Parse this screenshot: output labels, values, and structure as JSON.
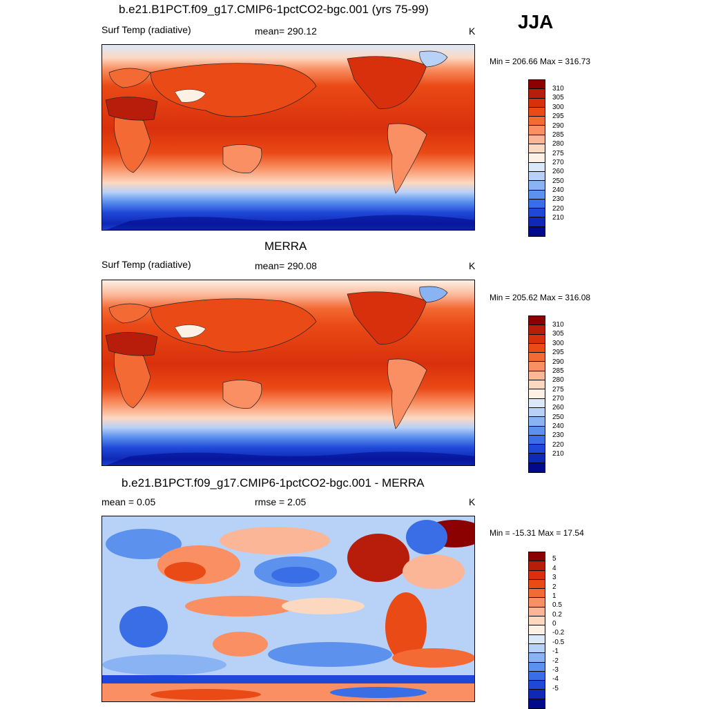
{
  "season": "JJA",
  "panels": [
    {
      "title": "b.e21.B1PCT.f09_g17.CMIP6-1pctCO2-bgc.001 (yrs 75-99)",
      "left_label": "Surf Temp (radiative)",
      "center_label": "mean= 290.12",
      "units": "K",
      "minmax": "Min = 206.66 Max = 316.73"
    },
    {
      "title": "MERRA",
      "left_label": "Surf Temp (radiative)",
      "center_label": "mean= 290.08",
      "units": "K",
      "minmax": "Min = 205.62 Max = 316.08"
    },
    {
      "title": "b.e21.B1PCT.f09_g17.CMIP6-1pctCO2-bgc.001 - MERRA",
      "left_label": "mean =   0.05",
      "center_label": "rmse =   2.05",
      "units": "K",
      "minmax": "Min = -15.31 Max =  17.54"
    }
  ],
  "chart_data": [
    {
      "type": "heatmap",
      "title": "b.e21.B1PCT.f09_g17.CMIP6-1pctCO2-bgc.001 (yrs 75-99)",
      "variable": "Surf Temp (radiative)",
      "units": "K",
      "mean": 290.12,
      "min": 206.66,
      "max": 316.73,
      "colorbar_levels": [
        "310",
        "305",
        "300",
        "295",
        "290",
        "285",
        "280",
        "275",
        "270",
        "260",
        "250",
        "240",
        "230",
        "220",
        "210"
      ],
      "colorbar_colors": [
        "#8b0000",
        "#b81d0b",
        "#d8300c",
        "#ea4a16",
        "#f36a34",
        "#f98f62",
        "#fbb697",
        "#fcd8c1",
        "#fdf1e6",
        "#dbe8fa",
        "#b8d1f7",
        "#8ab3f3",
        "#5c92ee",
        "#3a6ee6",
        "#1f48d8",
        "#0f28b5",
        "#000a8b"
      ]
    },
    {
      "type": "heatmap",
      "title": "MERRA",
      "variable": "Surf Temp (radiative)",
      "units": "K",
      "mean": 290.08,
      "min": 205.62,
      "max": 316.08,
      "colorbar_levels": [
        "310",
        "305",
        "300",
        "295",
        "290",
        "285",
        "280",
        "275",
        "270",
        "260",
        "250",
        "240",
        "230",
        "220",
        "210"
      ]
    },
    {
      "type": "heatmap",
      "title": "b.e21.B1PCT.f09_g17.CMIP6-1pctCO2-bgc.001 - MERRA",
      "units": "K",
      "mean": 0.05,
      "rmse": 2.05,
      "min": -15.31,
      "max": 17.54,
      "colorbar_levels": [
        "5",
        "4",
        "3",
        "2",
        "1",
        "0.5",
        "0.2",
        "0",
        "-0.2",
        "-0.5",
        "-1",
        "-2",
        "-3",
        "-4",
        "-5"
      ],
      "colorbar_colors": [
        "#8b0000",
        "#b81d0b",
        "#d8300c",
        "#ea4a16",
        "#f36a34",
        "#f98f62",
        "#fbb697",
        "#fcd8c1",
        "#fdf1e6",
        "#dbe8fa",
        "#b8d1f7",
        "#8ab3f3",
        "#5c92ee",
        "#3a6ee6",
        "#1f48d8",
        "#0f28b5",
        "#000a8b"
      ]
    }
  ]
}
